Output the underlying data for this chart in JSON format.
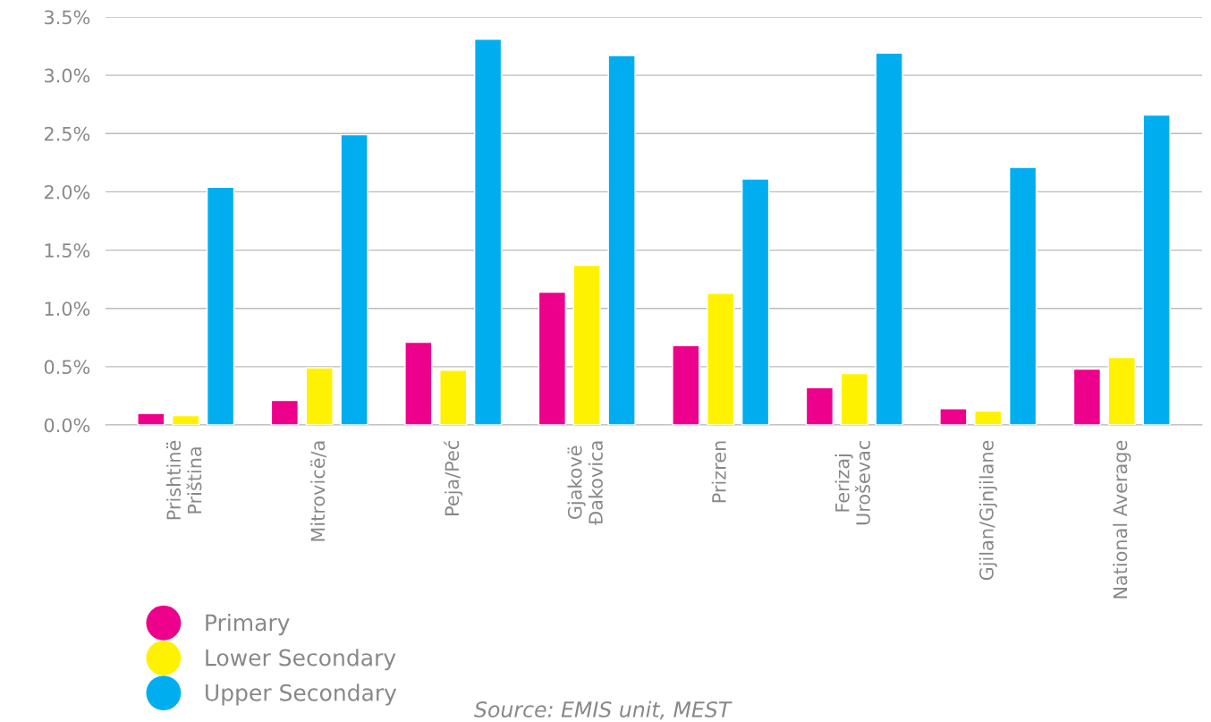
{
  "chart_data": {
    "type": "bar",
    "categories": [
      "Prishtinë\nPriština",
      "Mitrovicë/a",
      "Peja/Peć",
      "Gjakovë\nĐakovica",
      "Prizren",
      "Ferizaj\nUroševac",
      "Gjilan/Gjnjilane",
      "National Average"
    ],
    "series": [
      {
        "name": "Primary",
        "color": "#ec008c",
        "values": [
          0.1,
          0.21,
          0.71,
          1.14,
          0.68,
          0.32,
          0.14,
          0.48
        ]
      },
      {
        "name": "Lower Secondary",
        "color": "#fff200",
        "values": [
          0.08,
          0.49,
          0.47,
          1.37,
          1.13,
          0.44,
          0.12,
          0.58
        ]
      },
      {
        "name": "Upper Secondary",
        "color": "#00aeef",
        "values": [
          2.04,
          2.49,
          3.31,
          3.17,
          2.11,
          3.19,
          2.21,
          2.66
        ]
      }
    ],
    "ylim": [
      0,
      3.5
    ],
    "yticks": [
      {
        "value": 0,
        "label": "0.0%"
      },
      {
        "value": 0.5,
        "label": "0.5%"
      },
      {
        "value": 1,
        "label": "1.0%"
      },
      {
        "value": 1.5,
        "label": "1.5%"
      },
      {
        "value": 2,
        "label": "2.0%"
      },
      {
        "value": 2.5,
        "label": "2.5%"
      },
      {
        "value": 3,
        "label": "3.0%"
      },
      {
        "value": 3.5,
        "label": "3.5%"
      }
    ],
    "grid": "y",
    "legend": "bottom left",
    "annotations": [
      "Source: EMIS unit, MEST"
    ]
  }
}
